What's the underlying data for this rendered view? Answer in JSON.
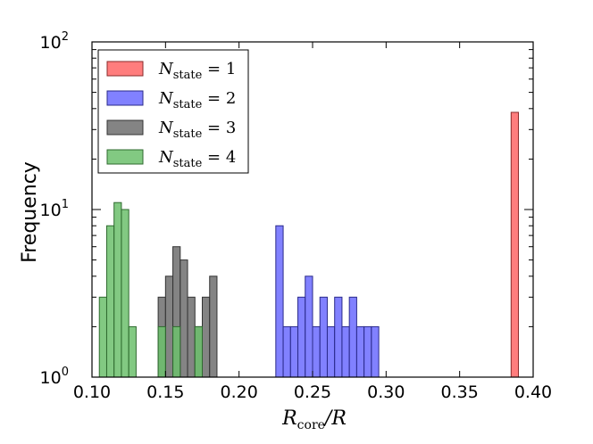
{
  "chart_data": {
    "type": "bar",
    "subtype": "histogram",
    "yscale": "log",
    "xlabel": {
      "main": "R",
      "sub": "core",
      "suffix": "/R"
    },
    "ylabel": "Frequency",
    "xlim": [
      0.1,
      0.4
    ],
    "ylim": [
      1,
      100
    ],
    "xticks": [
      "0.10",
      "0.15",
      "0.20",
      "0.25",
      "0.30",
      "0.35",
      "0.40"
    ],
    "xtick_values": [
      0.1,
      0.15,
      0.2,
      0.25,
      0.3,
      0.35,
      0.4
    ],
    "yticks": [
      {
        "base": "10",
        "exp": "0",
        "value": 1
      },
      {
        "base": "10",
        "exp": "1",
        "value": 10
      },
      {
        "base": "10",
        "exp": "2",
        "value": 100
      }
    ],
    "bin_width": 0.005,
    "legend_position": "top-left",
    "series": [
      {
        "name": "N_state = 1",
        "label_main": "N",
        "label_sub": "state",
        "label_eq": " = 1",
        "color": "#ff6666",
        "edge": "#8a2a2a",
        "bins": [
          {
            "x": 0.385,
            "count": 38
          }
        ]
      },
      {
        "name": "N_state = 2",
        "label_main": "N",
        "label_sub": "state",
        "label_eq": " = 2",
        "color": "#6b6bff",
        "edge": "#2a2a8a",
        "bins": [
          {
            "x": 0.225,
            "count": 8
          },
          {
            "x": 0.23,
            "count": 2
          },
          {
            "x": 0.235,
            "count": 2
          },
          {
            "x": 0.24,
            "count": 3
          },
          {
            "x": 0.245,
            "count": 4
          },
          {
            "x": 0.25,
            "count": 2
          },
          {
            "x": 0.255,
            "count": 3
          },
          {
            "x": 0.26,
            "count": 2
          },
          {
            "x": 0.265,
            "count": 3
          },
          {
            "x": 0.27,
            "count": 2
          },
          {
            "x": 0.275,
            "count": 3
          },
          {
            "x": 0.28,
            "count": 2
          },
          {
            "x": 0.285,
            "count": 2
          },
          {
            "x": 0.29,
            "count": 2
          }
        ]
      },
      {
        "name": "N_state = 3",
        "label_main": "N",
        "label_sub": "state",
        "label_eq": " = 3",
        "color": "#6e6e6e",
        "edge": "#333333",
        "bins": [
          {
            "x": 0.145,
            "count": 3
          },
          {
            "x": 0.15,
            "count": 4
          },
          {
            "x": 0.155,
            "count": 6
          },
          {
            "x": 0.16,
            "count": 5
          },
          {
            "x": 0.165,
            "count": 3
          },
          {
            "x": 0.17,
            "count": 2
          },
          {
            "x": 0.175,
            "count": 3
          },
          {
            "x": 0.18,
            "count": 4
          }
        ]
      },
      {
        "name": "N_state = 4",
        "label_main": "N",
        "label_sub": "state",
        "label_eq": " = 4",
        "color": "#6cbf6c",
        "edge": "#2f6a2f",
        "bins": [
          {
            "x": 0.105,
            "count": 3
          },
          {
            "x": 0.11,
            "count": 8
          },
          {
            "x": 0.115,
            "count": 11
          },
          {
            "x": 0.12,
            "count": 10
          },
          {
            "x": 0.125,
            "count": 2
          },
          {
            "x": 0.145,
            "count": 2
          },
          {
            "x": 0.155,
            "count": 2
          },
          {
            "x": 0.17,
            "count": 2
          }
        ]
      }
    ]
  }
}
